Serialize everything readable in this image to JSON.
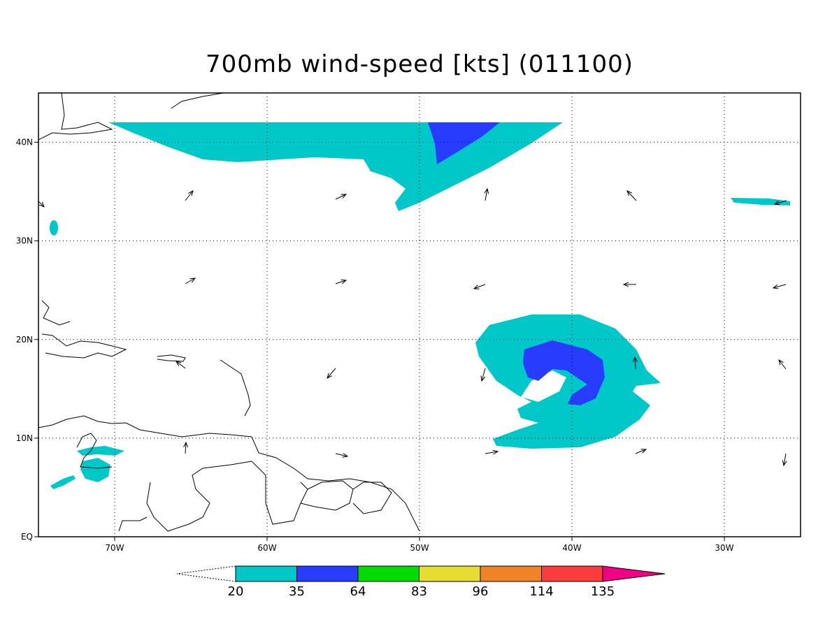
{
  "map": {
    "title": "700mb wind-speed [kts] (011100)",
    "lon_range": [
      -75,
      -25
    ],
    "lat_range": [
      0,
      45
    ],
    "lon_ticks": [
      {
        "value": -70,
        "label": "70W"
      },
      {
        "value": -60,
        "label": "60W"
      },
      {
        "value": -50,
        "label": "50W"
      },
      {
        "value": -40,
        "label": "40W"
      },
      {
        "value": -30,
        "label": "30W"
      }
    ],
    "lat_ticks": [
      {
        "value": 0,
        "label": "EQ"
      },
      {
        "value": 10,
        "label": "10N"
      },
      {
        "value": 20,
        "label": "20N"
      },
      {
        "value": 30,
        "label": "30N"
      },
      {
        "value": 40,
        "label": "40N"
      }
    ],
    "colorbar": {
      "levels": [
        20,
        35,
        64,
        83,
        96,
        114,
        135
      ],
      "colors": [
        "#ffffff",
        "#00c8c8",
        "#283cff",
        "#00dc00",
        "#e6dc32",
        "#f08228",
        "#fa3c3c",
        "#f00082"
      ]
    }
  }
}
